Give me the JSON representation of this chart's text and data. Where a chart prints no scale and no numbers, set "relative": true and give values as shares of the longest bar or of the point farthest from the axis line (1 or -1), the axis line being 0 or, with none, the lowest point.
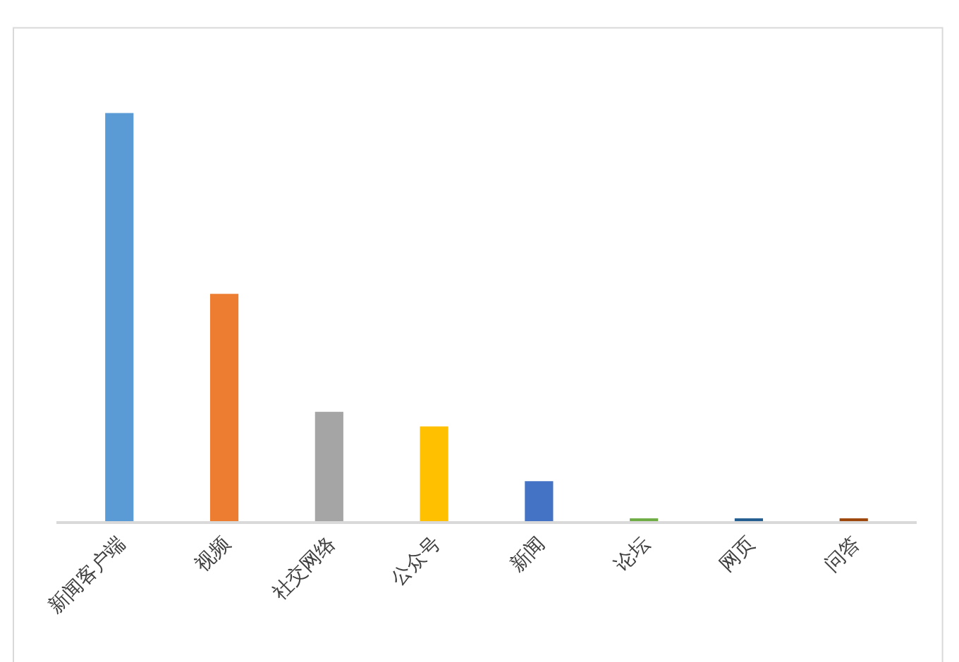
{
  "chart_data": {
    "type": "bar",
    "relative": true,
    "categories": [
      "新闻客户端",
      "视频",
      "社交网络",
      "公众号",
      "新闻",
      "论坛",
      "网页",
      "问答"
    ],
    "values": [
      1,
      0.557,
      0.268,
      0.232,
      0.098,
      0.004,
      0.004,
      0.004
    ],
    "colors": [
      "#5b9bd5",
      "#ed7d31",
      "#a5a5a5",
      "#ffc000",
      "#4472c4",
      "#70ad47",
      "#255e91",
      "#9e480e"
    ],
    "legend": false
  }
}
